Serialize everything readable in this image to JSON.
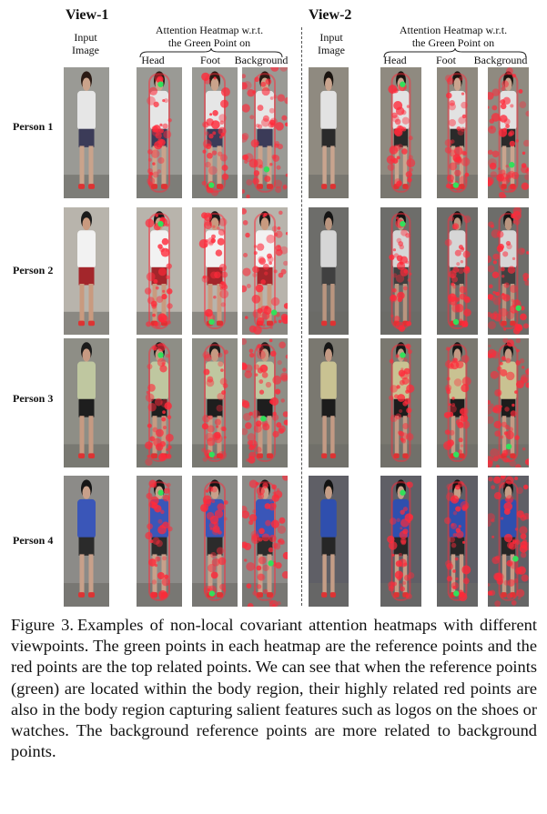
{
  "figure": {
    "views": [
      {
        "title": "View-1",
        "input_label": "Input\nImage",
        "heatmap_title": "Attention Heatmap w.r.t.\nthe Green Point on",
        "columns": [
          "Head",
          "Foot",
          "Background"
        ]
      },
      {
        "title": "View-2",
        "input_label": "Input\nImage",
        "heatmap_title": "Attention Heatmap w.r.t.\nthe Green Point on",
        "columns": [
          "Head",
          "Foot",
          "Background"
        ]
      }
    ],
    "rows": [
      "Person 1",
      "Person 2",
      "Person 3",
      "Person 4"
    ],
    "colors": {
      "heat": "#ff2a3a",
      "ref_point": "#33e05a"
    }
  },
  "caption": {
    "label": "Figure 3.",
    "text": "Examples of non-local covariant attention heatmaps with different viewpoints. The green points in each heatmap are the reference points and the red points are the top related points. We can see that when the reference points (green) are located within the body region, their highly related red points are also in the body region capturing salient features such as logos on the shoes or watches.  The background reference points are more related to background points."
  }
}
